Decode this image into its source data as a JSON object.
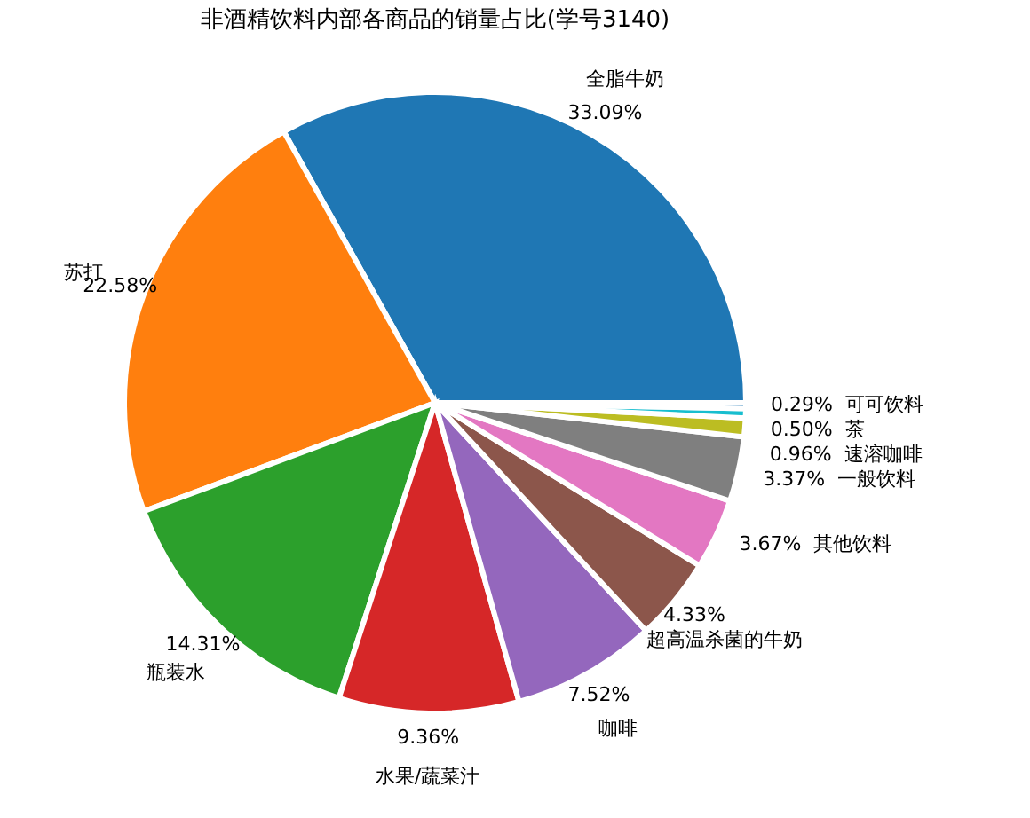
{
  "chart_data": {
    "type": "pie",
    "title": "非酒精饮料内部各商品的销量占比(学号3140)",
    "categories": [
      "全脂牛奶",
      "苏打",
      "瓶装水",
      "水果/蔬菜汁",
      "咖啡",
      "超高温杀菌的牛奶",
      "其他饮料",
      "一般饮料",
      "速溶咖啡",
      "茶",
      "可可饮料"
    ],
    "values": [
      33.09,
      22.58,
      14.31,
      9.36,
      7.52,
      4.33,
      3.67,
      3.37,
      0.96,
      0.5,
      0.29
    ],
    "value_labels": [
      "33.09%",
      "22.58%",
      "14.31%",
      "9.36%",
      "7.52%",
      "4.33%",
      "3.67%",
      "3.37%",
      "0.96%",
      "0.50%",
      "0.29%"
    ],
    "colors": [
      "#1f77b4",
      "#ff7f0e",
      "#2ca02c",
      "#d62728",
      "#9467bd",
      "#8c564b",
      "#e377c2",
      "#7f7f7f",
      "#bcbd22",
      "#17becf",
      "#1f77b4"
    ],
    "data_labels": true
  }
}
